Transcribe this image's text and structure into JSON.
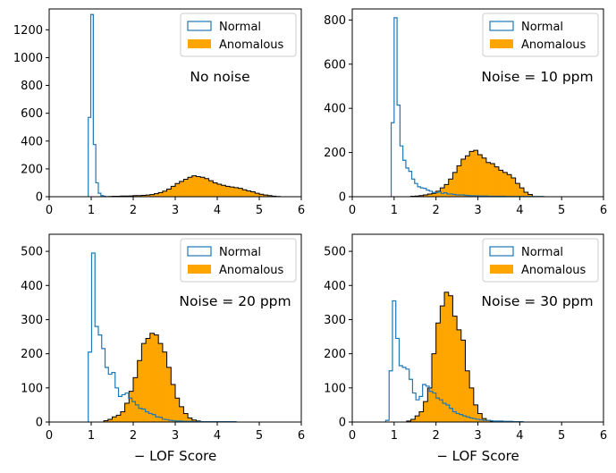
{
  "colors": {
    "normal": "#1f77b4",
    "anomalous": "#ffa500",
    "anomalous_edge": "#000000"
  },
  "chart_data": [
    {
      "type": "histogram",
      "panel": "top-left",
      "annotation": "No noise",
      "xlim": [
        0,
        6
      ],
      "ylim": [
        0,
        1350
      ],
      "xticks": [
        "0",
        "1",
        "2",
        "3",
        "4",
        "5",
        "6"
      ],
      "yticks": [
        0,
        200,
        400,
        600,
        800,
        1000,
        1200
      ],
      "ytick_labels": [
        "0",
        "200",
        "400",
        "600",
        "800",
        "1000",
        "1200"
      ],
      "xlabel": "",
      "legend": [
        "Normal",
        "Anomalous"
      ],
      "legend_position": "top-right",
      "series": [
        {
          "name": "Normal",
          "style": "step",
          "bin_edges": [
            0.93,
            0.99,
            1.05,
            1.11,
            1.17,
            1.23,
            1.29,
            1.35
          ],
          "counts": [
            570,
            1310,
            375,
            100,
            25,
            8,
            3
          ]
        },
        {
          "name": "Anomalous",
          "style": "filled",
          "bin_edges": [
            1.4,
            1.5,
            1.6,
            1.7,
            1.8,
            1.9,
            2.0,
            2.1,
            2.2,
            2.3,
            2.4,
            2.5,
            2.6,
            2.7,
            2.8,
            2.9,
            3.0,
            3.1,
            3.2,
            3.3,
            3.4,
            3.5,
            3.6,
            3.7,
            3.8,
            3.9,
            4.0,
            4.1,
            4.2,
            4.3,
            4.4,
            4.5,
            4.6,
            4.7,
            4.8,
            4.9,
            5.0,
            5.1,
            5.2,
            5.3,
            5.4,
            5.5
          ],
          "counts": [
            2,
            3,
            3,
            5,
            5,
            6,
            8,
            8,
            10,
            12,
            15,
            22,
            30,
            40,
            55,
            75,
            95,
            110,
            125,
            140,
            150,
            145,
            140,
            130,
            115,
            100,
            90,
            82,
            75,
            70,
            65,
            60,
            50,
            42,
            35,
            25,
            18,
            12,
            8,
            4,
            2
          ]
        }
      ]
    },
    {
      "type": "histogram",
      "panel": "top-right",
      "annotation": "Noise = 10 ppm",
      "xlim": [
        0,
        6
      ],
      "ylim": [
        0,
        850
      ],
      "xticks": [
        "0",
        "1",
        "2",
        "3",
        "4",
        "5",
        "6"
      ],
      "yticks": [
        0,
        200,
        400,
        600,
        800
      ],
      "ytick_labels": [
        "0",
        "200",
        "400",
        "600",
        "800"
      ],
      "xlabel": "",
      "legend": [
        "Normal",
        "Anomalous"
      ],
      "legend_position": "top-right",
      "series": [
        {
          "name": "Normal",
          "style": "step",
          "bin_edges": [
            0.93,
            1.0,
            1.07,
            1.14,
            1.21,
            1.28,
            1.35,
            1.42,
            1.49,
            1.56,
            1.63,
            1.7,
            1.77,
            1.84,
            1.91,
            1.98,
            2.05,
            2.12,
            2.19,
            2.26,
            2.33,
            2.4,
            2.47,
            2.54,
            2.61,
            2.68,
            2.75,
            2.82,
            2.89,
            2.96,
            3.03,
            3.1,
            3.17,
            3.24,
            3.31,
            3.38,
            3.45,
            3.52,
            3.59,
            3.66,
            3.73,
            3.8,
            3.87,
            3.94,
            4.01,
            4.08,
            4.15,
            4.22,
            4.29,
            4.36,
            4.43,
            4.5,
            4.57
          ],
          "counts": [
            335,
            810,
            415,
            230,
            165,
            130,
            115,
            80,
            60,
            45,
            40,
            38,
            30,
            25,
            20,
            18,
            22,
            15,
            18,
            12,
            12,
            10,
            8,
            8,
            8,
            6,
            5,
            4,
            4,
            4,
            3,
            3,
            3,
            2,
            2,
            2,
            2,
            2,
            2,
            1,
            1,
            1,
            1,
            1,
            1,
            1,
            1,
            1,
            1,
            1,
            1,
            1
          ]
        },
        {
          "name": "Anomalous",
          "style": "filled",
          "bin_edges": [
            1.4,
            1.5,
            1.6,
            1.7,
            1.8,
            1.9,
            2.0,
            2.1,
            2.2,
            2.3,
            2.4,
            2.5,
            2.6,
            2.7,
            2.8,
            2.9,
            3.0,
            3.1,
            3.2,
            3.3,
            3.4,
            3.5,
            3.6,
            3.7,
            3.8,
            3.9,
            4.0,
            4.1,
            4.2,
            4.3
          ],
          "counts": [
            2,
            3,
            5,
            8,
            12,
            15,
            25,
            40,
            55,
            80,
            110,
            140,
            170,
            185,
            205,
            210,
            190,
            175,
            155,
            150,
            135,
            120,
            110,
            100,
            85,
            60,
            40,
            20,
            10
          ]
        }
      ]
    },
    {
      "type": "histogram",
      "panel": "bottom-left",
      "annotation": "Noise = 20 ppm",
      "xlim": [
        0,
        6
      ],
      "ylim": [
        0,
        550
      ],
      "xticks": [
        "0",
        "1",
        "2",
        "3",
        "4",
        "5",
        "6"
      ],
      "yticks": [
        0,
        100,
        200,
        300,
        400,
        500
      ],
      "ytick_labels": [
        "0",
        "100",
        "200",
        "300",
        "400",
        "500"
      ],
      "xlabel": "− LOF Score",
      "legend": [
        "Normal",
        "Anomalous"
      ],
      "legend_position": "top-right",
      "series": [
        {
          "name": "Normal",
          "style": "step",
          "bin_edges": [
            0.93,
            1.01,
            1.09,
            1.17,
            1.25,
            1.33,
            1.41,
            1.49,
            1.57,
            1.65,
            1.73,
            1.81,
            1.89,
            1.97,
            2.05,
            2.13,
            2.21,
            2.29,
            2.37,
            2.45,
            2.53,
            2.61,
            2.69,
            2.77,
            2.85,
            2.93,
            3.01,
            3.09,
            3.17,
            3.25,
            3.33,
            3.41,
            3.49,
            3.57,
            3.65,
            3.73,
            3.81,
            3.89,
            3.97,
            4.05,
            4.13,
            4.21,
            4.29,
            4.37,
            4.45
          ],
          "counts": [
            205,
            495,
            280,
            255,
            215,
            160,
            140,
            145,
            100,
            75,
            80,
            85,
            70,
            60,
            50,
            40,
            38,
            30,
            25,
            22,
            15,
            14,
            8,
            7,
            5,
            4,
            3,
            3,
            2,
            2,
            2,
            1,
            1,
            1,
            1,
            1,
            1,
            1,
            1,
            1,
            1,
            1,
            1,
            1
          ]
        },
        {
          "name": "Anomalous",
          "style": "filled",
          "bin_edges": [
            1.3,
            1.4,
            1.5,
            1.6,
            1.7,
            1.8,
            1.9,
            2.0,
            2.1,
            2.2,
            2.3,
            2.4,
            2.5,
            2.6,
            2.7,
            2.8,
            2.9,
            3.0,
            3.1,
            3.2,
            3.3,
            3.4,
            3.5,
            3.6
          ],
          "counts": [
            4,
            8,
            15,
            20,
            30,
            55,
            90,
            130,
            180,
            230,
            245,
            260,
            255,
            230,
            205,
            160,
            110,
            70,
            45,
            25,
            12,
            6,
            3
          ]
        }
      ]
    },
    {
      "type": "histogram",
      "panel": "bottom-right",
      "annotation": "Noise = 30 ppm",
      "xlim": [
        0,
        6
      ],
      "ylim": [
        0,
        550
      ],
      "xticks": [
        "0",
        "1",
        "2",
        "3",
        "4",
        "5",
        "6"
      ],
      "yticks": [
        0,
        100,
        200,
        300,
        400,
        500
      ],
      "ytick_labels": [
        "0",
        "100",
        "200",
        "300",
        "400",
        "500"
      ],
      "xlabel": "− LOF Score",
      "legend": [
        "Normal",
        "Anomalous"
      ],
      "legend_position": "top-right",
      "series": [
        {
          "name": "Normal",
          "style": "step",
          "bin_edges": [
            0.8,
            0.88,
            0.96,
            1.04,
            1.12,
            1.2,
            1.28,
            1.36,
            1.44,
            1.52,
            1.6,
            1.68,
            1.76,
            1.84,
            1.92,
            2.0,
            2.08,
            2.16,
            2.24,
            2.32,
            2.4,
            2.48,
            2.56,
            2.64,
            2.72,
            2.8,
            2.88,
            2.96,
            3.04,
            3.12,
            3.2,
            3.28,
            3.36,
            3.44,
            3.52,
            3.6,
            3.68,
            3.76,
            3.84,
            3.92,
            4.0,
            4.08
          ],
          "counts": [
            5,
            150,
            355,
            245,
            165,
            160,
            155,
            125,
            85,
            65,
            75,
            110,
            105,
            90,
            85,
            70,
            65,
            55,
            50,
            40,
            30,
            25,
            22,
            18,
            15,
            12,
            10,
            8,
            6,
            5,
            5,
            4,
            3,
            3,
            3,
            2,
            2,
            2,
            1,
            1,
            1
          ]
        },
        {
          "name": "Anomalous",
          "style": "filled",
          "bin_edges": [
            1.3,
            1.4,
            1.5,
            1.6,
            1.7,
            1.8,
            1.9,
            2.0,
            2.1,
            2.2,
            2.3,
            2.4,
            2.5,
            2.6,
            2.7,
            2.8,
            2.9,
            3.0,
            3.1,
            3.2,
            3.3,
            3.4
          ],
          "counts": [
            3,
            8,
            18,
            30,
            60,
            100,
            200,
            290,
            340,
            380,
            370,
            310,
            270,
            240,
            150,
            100,
            50,
            25,
            10,
            5,
            2
          ]
        }
      ]
    }
  ]
}
